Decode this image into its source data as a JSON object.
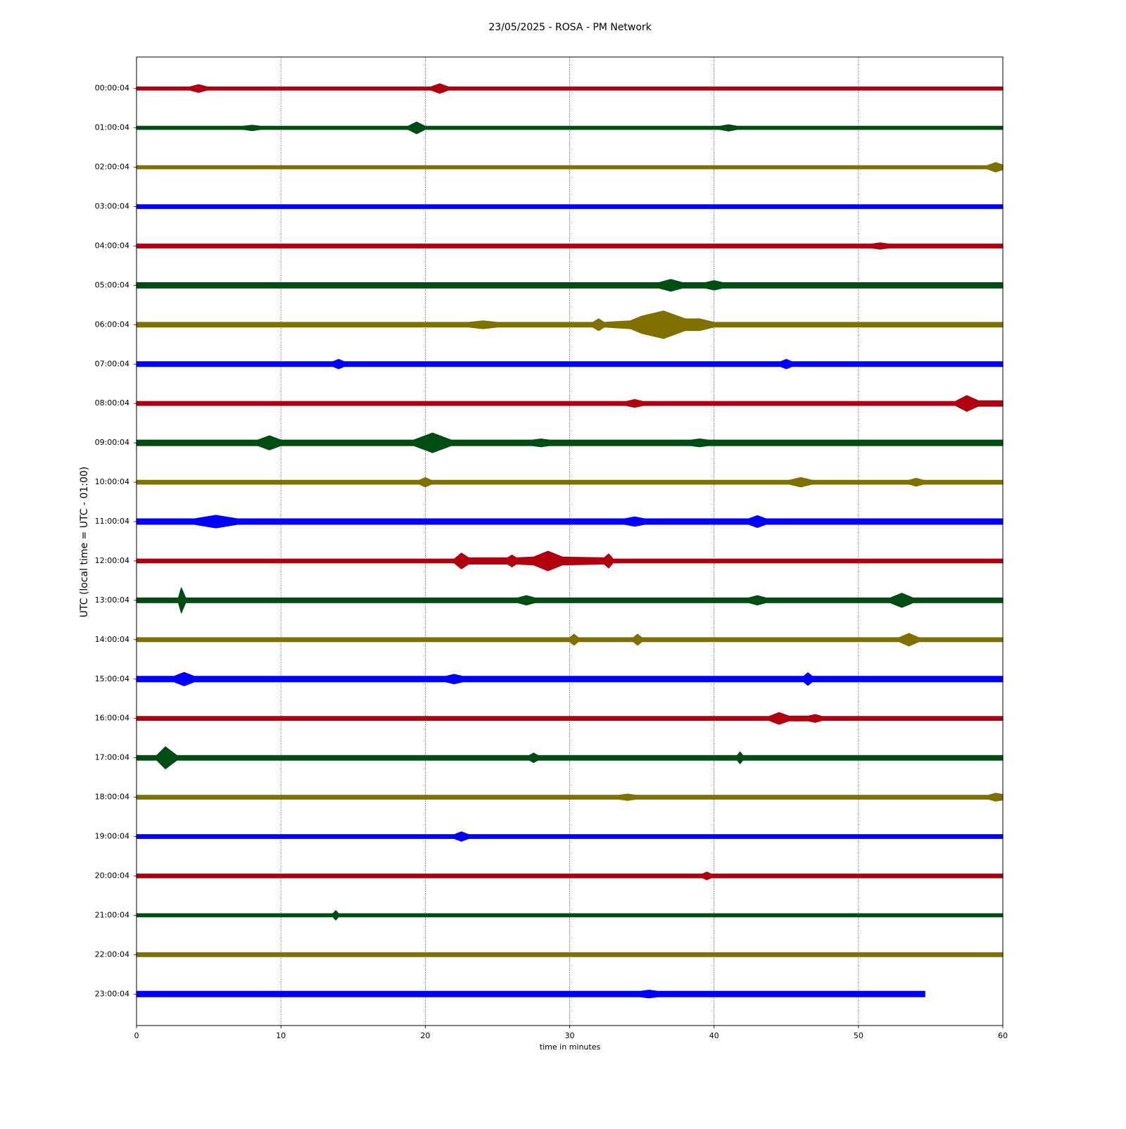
{
  "chart_data": {
    "type": "helicorder",
    "title": "23/05/2025 - ROSA - PM Network",
    "xlabel": "time in minutes",
    "ylabel": "UTC (local time = UTC - 01:00)",
    "xlim": [
      0,
      60
    ],
    "xticks": [
      0,
      10,
      20,
      30,
      40,
      50,
      60
    ],
    "grid": true,
    "series": [
      {
        "name": "00:00:04",
        "color": "#b0000f",
        "x": [
          0,
          3.7,
          4.3,
          4.9,
          20.4,
          21,
          21.6,
          60
        ],
        "values": [
          0.04,
          0.04,
          0.1,
          0.04,
          0.04,
          0.12,
          0.04,
          0.04
        ]
      },
      {
        "name": "01:00:04",
        "color": "#004d14",
        "x": [
          0,
          7.4,
          8,
          8.6,
          18.8,
          19.4,
          20,
          40.4,
          41,
          41.6,
          60
        ],
        "values": [
          0.04,
          0.04,
          0.07,
          0.04,
          0.04,
          0.15,
          0.04,
          0.04,
          0.08,
          0.04,
          0.04
        ]
      },
      {
        "name": "02:00:04",
        "color": "#7f7000",
        "x": [
          0,
          58.9,
          59.5,
          60
        ],
        "values": [
          0.04,
          0.04,
          0.12,
          0.06
        ]
      },
      {
        "name": "03:00:04",
        "color": "#0000ff",
        "x": [
          0,
          60
        ],
        "values": [
          0.05,
          0.05
        ]
      },
      {
        "name": "04:00:04",
        "color": "#b0000f",
        "x": [
          0,
          50.9,
          51.5,
          52.1,
          60
        ],
        "values": [
          0.05,
          0.05,
          0.08,
          0.05,
          0.05
        ]
      },
      {
        "name": "05:00:04",
        "color": "#004d14",
        "x": [
          0,
          36.2,
          37,
          37.8,
          39.4,
          40,
          40.6,
          60
        ],
        "values": [
          0.07,
          0.07,
          0.15,
          0.07,
          0.07,
          0.12,
          0.07,
          0.07
        ]
      },
      {
        "name": "06:00:04",
        "color": "#7f7000",
        "x": [
          0,
          23,
          24,
          25,
          31.6,
          32,
          32.4,
          34.2,
          35,
          36.5,
          38,
          39,
          40,
          60
        ],
        "values": [
          0.06,
          0.06,
          0.1,
          0.06,
          0.06,
          0.15,
          0.06,
          0.1,
          0.22,
          0.35,
          0.15,
          0.15,
          0.06,
          0.06
        ]
      },
      {
        "name": "07:00:04",
        "color": "#0000ff",
        "x": [
          0,
          13.6,
          14,
          14.4,
          44.6,
          45,
          45.4,
          60
        ],
        "values": [
          0.06,
          0.06,
          0.12,
          0.06,
          0.06,
          0.12,
          0.06,
          0.06
        ]
      },
      {
        "name": "08:00:04",
        "color": "#b0000f",
        "x": [
          0,
          33.9,
          34.5,
          35.1,
          56.7,
          57.5,
          58.3,
          60
        ],
        "values": [
          0.05,
          0.05,
          0.1,
          0.05,
          0.05,
          0.2,
          0.07,
          0.07
        ]
      },
      {
        "name": "09:00:04",
        "color": "#004d14",
        "x": [
          0,
          8.4,
          9.2,
          10,
          19.2,
          20.5,
          21.8,
          27.4,
          28,
          28.6,
          38.4,
          39,
          39.6,
          60
        ],
        "values": [
          0.07,
          0.07,
          0.18,
          0.07,
          0.07,
          0.25,
          0.07,
          0.07,
          0.1,
          0.07,
          0.07,
          0.1,
          0.07,
          0.07
        ]
      },
      {
        "name": "10:00:04",
        "color": "#7f7000",
        "x": [
          0,
          19.6,
          20,
          20.4,
          45.2,
          46,
          46.8,
          53.5,
          54,
          54.5,
          60
        ],
        "values": [
          0.05,
          0.05,
          0.12,
          0.05,
          0.05,
          0.12,
          0.05,
          0.05,
          0.1,
          0.05,
          0.05
        ]
      },
      {
        "name": "11:00:04",
        "color": "#0000ff",
        "x": [
          0,
          4,
          5.5,
          7,
          33.8,
          34.5,
          35.2,
          42.4,
          43,
          43.6,
          60
        ],
        "values": [
          0.07,
          0.07,
          0.16,
          0.07,
          0.07,
          0.12,
          0.07,
          0.07,
          0.15,
          0.07,
          0.07
        ]
      },
      {
        "name": "12:00:04",
        "color": "#b0000f",
        "x": [
          0,
          22,
          22.5,
          23,
          25.7,
          26,
          26.3,
          27.5,
          28.5,
          29.5,
          32.4,
          32.7,
          33,
          60
        ],
        "values": [
          0.05,
          0.05,
          0.2,
          0.08,
          0.08,
          0.15,
          0.08,
          0.1,
          0.25,
          0.1,
          0.08,
          0.18,
          0.05,
          0.05
        ]
      },
      {
        "name": "13:00:04",
        "color": "#004d14",
        "x": [
          0,
          2.9,
          3.1,
          3.4,
          26.4,
          27,
          27.6,
          42.4,
          43,
          43.6,
          52.2,
          53,
          53.8,
          60
        ],
        "values": [
          0.06,
          0.06,
          0.32,
          0.06,
          0.06,
          0.12,
          0.06,
          0.06,
          0.12,
          0.06,
          0.06,
          0.18,
          0.06,
          0.06
        ]
      },
      {
        "name": "14:00:04",
        "color": "#7f7000",
        "x": [
          0,
          30,
          30.3,
          30.6,
          34.4,
          34.7,
          35,
          52.8,
          53.5,
          54.2,
          60
        ],
        "values": [
          0.05,
          0.05,
          0.14,
          0.05,
          0.05,
          0.14,
          0.05,
          0.05,
          0.16,
          0.05,
          0.05
        ]
      },
      {
        "name": "15:00:04",
        "color": "#0000ff",
        "x": [
          0,
          2.6,
          3.3,
          4,
          21.4,
          22,
          22.6,
          46.2,
          46.5,
          46.8,
          60
        ],
        "values": [
          0.07,
          0.07,
          0.17,
          0.07,
          0.07,
          0.12,
          0.07,
          0.07,
          0.16,
          0.07,
          0.07
        ]
      },
      {
        "name": "16:00:04",
        "color": "#b0000f",
        "x": [
          0,
          43.8,
          44.5,
          45.2,
          46.5,
          47,
          47.5,
          60
        ],
        "values": [
          0.05,
          0.05,
          0.15,
          0.06,
          0.06,
          0.1,
          0.05,
          0.05
        ]
      },
      {
        "name": "17:00:04",
        "color": "#004d14",
        "x": [
          0,
          1.4,
          2,
          2.8,
          27.2,
          27.5,
          27.8,
          41.6,
          41.8,
          42,
          60
        ],
        "values": [
          0.06,
          0.06,
          0.28,
          0.06,
          0.06,
          0.12,
          0.06,
          0.06,
          0.15,
          0.06,
          0.06
        ]
      },
      {
        "name": "18:00:04",
        "color": "#7f7000",
        "x": [
          0,
          33.4,
          34,
          34.6,
          59,
          59.5,
          60
        ],
        "values": [
          0.05,
          0.05,
          0.08,
          0.05,
          0.05,
          0.1,
          0.07
        ]
      },
      {
        "name": "19:00:04",
        "color": "#0000ff",
        "x": [
          0,
          22,
          22.5,
          23,
          60
        ],
        "values": [
          0.05,
          0.05,
          0.12,
          0.05,
          0.05
        ]
      },
      {
        "name": "20:00:04",
        "color": "#b0000f",
        "x": [
          0,
          39.2,
          39.5,
          39.8,
          60
        ],
        "values": [
          0.05,
          0.05,
          0.1,
          0.05,
          0.05
        ]
      },
      {
        "name": "21:00:04",
        "color": "#004d14",
        "x": [
          0,
          13.6,
          13.8,
          14,
          60
        ],
        "values": [
          0.04,
          0.04,
          0.12,
          0.04,
          0.04
        ]
      },
      {
        "name": "22:00:04",
        "color": "#7f7000",
        "x": [
          0,
          60
        ],
        "values": [
          0.05,
          0.05
        ]
      },
      {
        "name": "23:00:04",
        "color": "#0000ff",
        "x": [
          0,
          34.9,
          35.5,
          36.1,
          54.6
        ],
        "values": [
          0.07,
          0.07,
          0.1,
          0.07,
          0.07
        ]
      }
    ]
  }
}
